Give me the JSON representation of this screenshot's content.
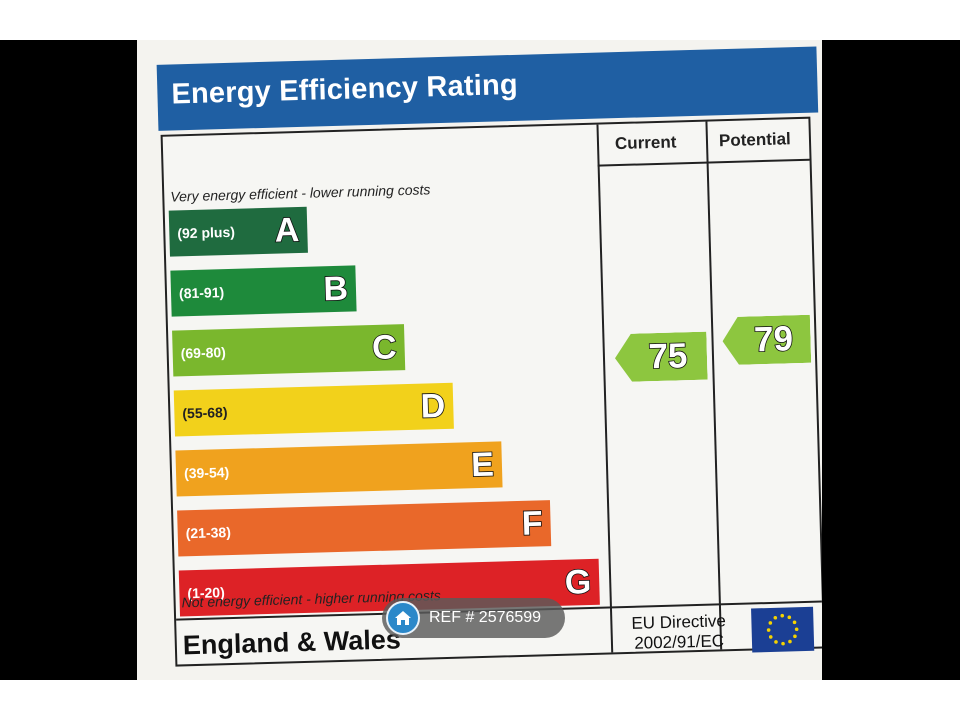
{
  "chart_title": "Energy Efficiency Rating",
  "columns": {
    "current": "Current",
    "potential": "Potential"
  },
  "captions": {
    "top": "Very energy efficient - lower running costs",
    "bottom": "Not energy efficient - higher running costs"
  },
  "bands": [
    {
      "letter": "A",
      "range": "(92 plus)",
      "color": "#1f6b3f"
    },
    {
      "letter": "B",
      "range": "(81-91)",
      "color": "#1e8a3b"
    },
    {
      "letter": "C",
      "range": "(69-80)",
      "color": "#7ab72d"
    },
    {
      "letter": "D",
      "range": "(55-68)",
      "color": "#f2d11b"
    },
    {
      "letter": "E",
      "range": "(39-54)",
      "color": "#f0a21e"
    },
    {
      "letter": "F",
      "range": "(21-38)",
      "color": "#e9682a"
    },
    {
      "letter": "G",
      "range": "(1-20)",
      "color": "#dd2226"
    }
  ],
  "ratings": {
    "current": {
      "value": "75",
      "band": "C",
      "color": "#8dc63f"
    },
    "potential": {
      "value": "79",
      "band": "C",
      "color": "#8dc63f"
    }
  },
  "footer": {
    "region": "England & Wales",
    "directive_line1": "EU Directive",
    "directive_line2": "2002/91/EC"
  },
  "watermark": {
    "label": "REF # 2576599"
  },
  "colors": {
    "header": "#1f5fa3",
    "eu_blue": "#1b3f94",
    "eu_star": "#f5d300"
  }
}
